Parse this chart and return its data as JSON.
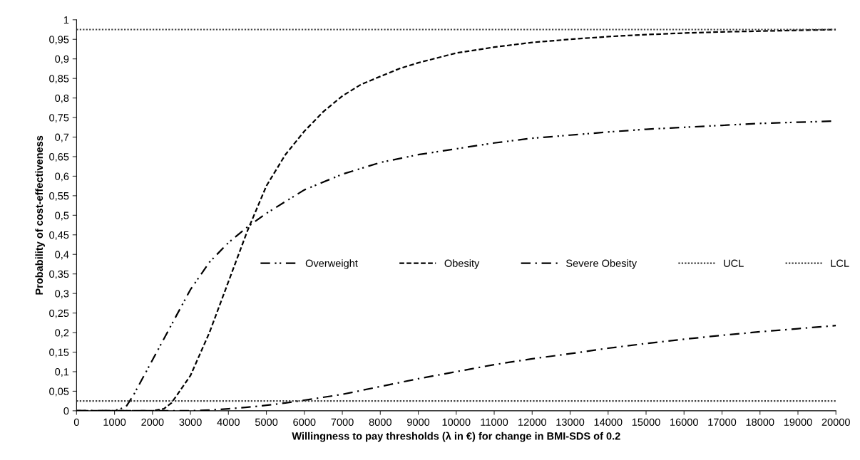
{
  "chart_data": {
    "type": "line",
    "xlabel": "Willingness to pay thresholds (λ in €) for change in BMI-SDS of 0.2",
    "ylabel": "Probability of cost-effectiveness",
    "xlim": [
      0,
      20000
    ],
    "xticks": [
      0,
      1000,
      2000,
      3000,
      4000,
      5000,
      6000,
      7000,
      8000,
      9000,
      10000,
      11000,
      12000,
      13000,
      14000,
      15000,
      16000,
      17000,
      18000,
      19000,
      20000
    ],
    "ylim": [
      0,
      1
    ],
    "yticks": [
      0,
      {
        "value": 0.05,
        "label": "0,05"
      },
      {
        "value": 0.1,
        "label": "0,1"
      },
      {
        "value": 0.15,
        "label": "0,15"
      },
      {
        "value": 0.2,
        "label": "0,2"
      },
      {
        "value": 0.25,
        "label": "0,25"
      },
      {
        "value": 0.3,
        "label": "0,3"
      },
      {
        "value": 0.35,
        "label": "0,35"
      },
      {
        "value": 0.4,
        "label": "0,4"
      },
      {
        "value": 0.45,
        "label": "0,45"
      },
      {
        "value": 0.5,
        "label": "0,5"
      },
      {
        "value": 0.55,
        "label": "0,55"
      },
      {
        "value": 0.6,
        "label": "0,6"
      },
      {
        "value": 0.65,
        "label": "0,65"
      },
      {
        "value": 0.7,
        "label": "0,7"
      },
      {
        "value": 0.75,
        "label": "0,75"
      },
      {
        "value": 0.8,
        "label": "0,8"
      },
      {
        "value": 0.85,
        "label": "0,85"
      },
      {
        "value": 0.9,
        "label": "0,9"
      },
      {
        "value": 0.95,
        "label": "0,95"
      },
      1
    ],
    "grid": false,
    "legend": "center",
    "marker": "none",
    "series": [
      {
        "name": "Overweight",
        "color": "#000000",
        "line_style": "dashdotdot",
        "x": [
          0,
          1000,
          1300,
          1500,
          2000,
          2500,
          3000,
          3500,
          4000,
          4500,
          5000,
          5500,
          6000,
          7000,
          8000,
          9000,
          10000,
          11000,
          12000,
          13000,
          14000,
          15000,
          16000,
          17000,
          18000,
          19000,
          20000
        ],
        "values": [
          0,
          0,
          0.01,
          0.04,
          0.13,
          0.22,
          0.31,
          0.38,
          0.43,
          0.47,
          0.505,
          0.535,
          0.565,
          0.605,
          0.635,
          0.655,
          0.67,
          0.685,
          0.697,
          0.705,
          0.713,
          0.72,
          0.725,
          0.73,
          0.735,
          0.738,
          0.741
        ]
      },
      {
        "name": "Obesity",
        "color": "#000000",
        "line_style": "dashed",
        "x": [
          0,
          2000,
          2300,
          2500,
          3000,
          3500,
          4000,
          4500,
          5000,
          5500,
          6000,
          6500,
          7000,
          7500,
          8000,
          8500,
          9000,
          10000,
          11000,
          12000,
          13000,
          14000,
          15000,
          16000,
          17000,
          18000,
          19000,
          20000
        ],
        "values": [
          0,
          0,
          0.005,
          0.02,
          0.09,
          0.2,
          0.33,
          0.46,
          0.575,
          0.655,
          0.715,
          0.765,
          0.805,
          0.835,
          0.855,
          0.875,
          0.89,
          0.915,
          0.93,
          0.942,
          0.95,
          0.957,
          0.962,
          0.966,
          0.969,
          0.971,
          0.973,
          0.975
        ]
      },
      {
        "name": "Severe Obesity",
        "color": "#000000",
        "line_style": "dashdot",
        "x": [
          0,
          3000,
          3500,
          4000,
          4500,
          5000,
          5500,
          6000,
          7000,
          8000,
          9000,
          10000,
          11000,
          12000,
          13000,
          14000,
          15000,
          16000,
          17000,
          18000,
          19000,
          20000
        ],
        "values": [
          0,
          0,
          0.002,
          0.005,
          0.009,
          0.014,
          0.02,
          0.027,
          0.042,
          0.062,
          0.082,
          0.1,
          0.118,
          0.133,
          0.146,
          0.16,
          0.172,
          0.183,
          0.193,
          0.202,
          0.21,
          0.218
        ]
      },
      {
        "name": "UCL",
        "color": "#404040",
        "line_style": "dotted",
        "x": [
          0,
          20000
        ],
        "values": [
          0.975,
          0.975
        ]
      },
      {
        "name": "LCL",
        "color": "#404040",
        "line_style": "dotted",
        "x": [
          0,
          20000
        ],
        "values": [
          0.025,
          0.025
        ]
      }
    ]
  }
}
